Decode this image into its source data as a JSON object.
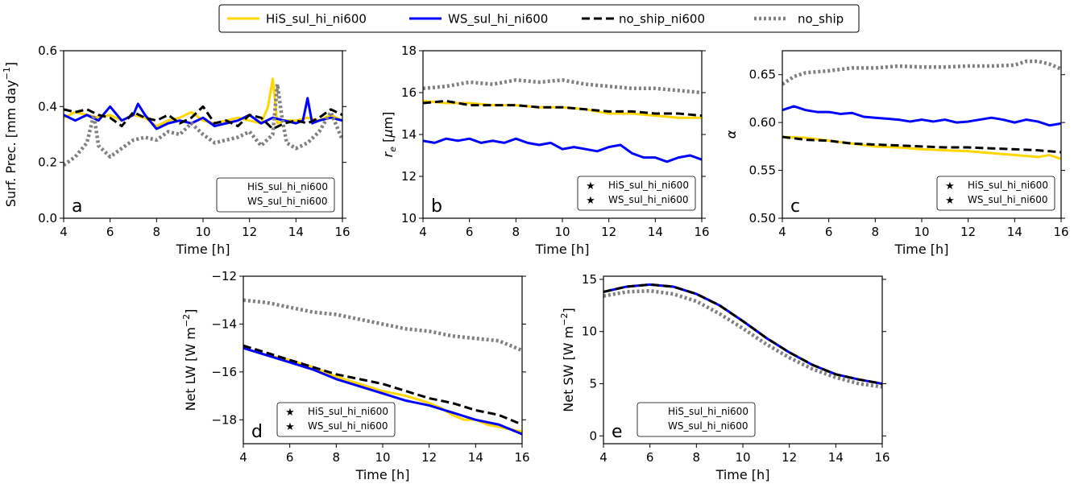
{
  "legend": {
    "entries": [
      {
        "label": "HiS_sul_hi_ni600",
        "color": "#FFD700",
        "style": "solid"
      },
      {
        "label": "WS_sul_hi_ni600",
        "color": "#0000FF",
        "style": "solid"
      },
      {
        "label": "no_ship_ni600",
        "color": "#000000",
        "style": "dashed"
      },
      {
        "label": "no_ship",
        "color": "#808080",
        "style": "dotted"
      }
    ]
  },
  "chart_data": [
    {
      "id": "a",
      "type": "line",
      "panel_label": "a",
      "xlabel": "Time [h]",
      "ylabel": "Surf. Prec. [mm day",
      "ylabel_sup": "−1",
      "ylabel_tail": "]",
      "xlim": [
        4,
        16
      ],
      "ylim": [
        0.0,
        0.6
      ],
      "xticks": [
        4,
        6,
        8,
        10,
        12,
        14,
        16
      ],
      "yticks": [
        0.0,
        0.2,
        0.4,
        0.6
      ],
      "ytick_labels": [
        "0.0",
        "0.2",
        "0.4",
        "0.6"
      ],
      "inset_legend": {
        "markers": false,
        "entries": [
          "HiS_sul_hi_ni600",
          "WS_sul_hi_ni600"
        ]
      },
      "series": [
        {
          "name": "HiS_sul_hi_ni600",
          "color": "#FFD700",
          "style": "solid",
          "x": [
            4,
            4.5,
            5,
            5.5,
            6,
            6.5,
            7,
            7.5,
            8,
            8.5,
            9,
            9.5,
            10,
            10.5,
            11,
            11.5,
            12,
            12.5,
            12.8,
            13,
            13.2,
            13.5,
            14,
            14.5,
            15,
            15.5,
            16
          ],
          "y": [
            0.36,
            0.38,
            0.37,
            0.36,
            0.37,
            0.35,
            0.37,
            0.36,
            0.33,
            0.35,
            0.36,
            0.38,
            0.35,
            0.34,
            0.35,
            0.36,
            0.35,
            0.34,
            0.4,
            0.5,
            0.34,
            0.35,
            0.35,
            0.36,
            0.35,
            0.37,
            0.35
          ]
        },
        {
          "name": "WS_sul_hi_ni600",
          "color": "#0000FF",
          "style": "solid",
          "x": [
            4,
            4.5,
            5,
            5.5,
            6,
            6.5,
            7,
            7.2,
            7.5,
            8,
            8.5,
            9,
            9.5,
            10,
            10.5,
            11,
            11.5,
            12,
            12.5,
            13,
            13.5,
            14,
            14.3,
            14.5,
            14.7,
            15,
            15.5,
            16
          ],
          "y": [
            0.37,
            0.35,
            0.37,
            0.35,
            0.4,
            0.35,
            0.37,
            0.41,
            0.37,
            0.32,
            0.34,
            0.35,
            0.34,
            0.36,
            0.33,
            0.34,
            0.35,
            0.37,
            0.34,
            0.36,
            0.35,
            0.34,
            0.35,
            0.43,
            0.34,
            0.35,
            0.36,
            0.35
          ]
        },
        {
          "name": "no_ship_ni600",
          "color": "#000000",
          "style": "dashed",
          "x": [
            4,
            4.5,
            5,
            5.5,
            6,
            6.5,
            7,
            7.5,
            8,
            8.5,
            9,
            9.5,
            10,
            10.5,
            11,
            11.5,
            12,
            12.5,
            13,
            13.5,
            14,
            14.5,
            15,
            15.5,
            16
          ],
          "y": [
            0.39,
            0.38,
            0.39,
            0.37,
            0.36,
            0.33,
            0.38,
            0.36,
            0.35,
            0.37,
            0.34,
            0.36,
            0.4,
            0.34,
            0.35,
            0.33,
            0.37,
            0.36,
            0.32,
            0.34,
            0.35,
            0.34,
            0.36,
            0.39,
            0.37
          ]
        },
        {
          "name": "no_ship",
          "color": "#808080",
          "style": "dotted",
          "x": [
            4,
            4.5,
            5,
            5.3,
            5.5,
            6,
            6.5,
            7,
            7.5,
            8,
            8.5,
            9,
            9.5,
            10,
            10.5,
            11,
            11.5,
            12,
            12.5,
            13,
            13.2,
            13.4,
            13.6,
            14,
            14.5,
            15,
            15.5,
            16
          ],
          "y": [
            0.19,
            0.22,
            0.27,
            0.37,
            0.26,
            0.22,
            0.25,
            0.28,
            0.29,
            0.28,
            0.31,
            0.3,
            0.34,
            0.3,
            0.27,
            0.28,
            0.29,
            0.31,
            0.26,
            0.3,
            0.48,
            0.36,
            0.27,
            0.25,
            0.27,
            0.31,
            0.38,
            0.28
          ]
        }
      ]
    },
    {
      "id": "b",
      "type": "line",
      "panel_label": "b",
      "xlabel": "Time [h]",
      "ylabel": "r_e [μm]",
      "xlim": [
        4,
        16
      ],
      "ylim": [
        10,
        18
      ],
      "xticks": [
        4,
        6,
        8,
        10,
        12,
        14,
        16
      ],
      "yticks": [
        10,
        12,
        14,
        16,
        18
      ],
      "ytick_labels": [
        "10",
        "12",
        "14",
        "16",
        "18"
      ],
      "inset_legend": {
        "markers": true,
        "entries": [
          "HiS_sul_hi_ni600",
          "WS_sul_hi_ni600"
        ]
      },
      "series": [
        {
          "name": "HiS_sul_hi_ni600",
          "color": "#FFD700",
          "style": "solid",
          "x": [
            4,
            5,
            6,
            7,
            8,
            9,
            10,
            11,
            12,
            13,
            14,
            15,
            16
          ],
          "y": [
            15.6,
            15.5,
            15.5,
            15.4,
            15.4,
            15.3,
            15.3,
            15.2,
            15.0,
            15.0,
            14.9,
            14.8,
            14.8
          ]
        },
        {
          "name": "WS_sul_hi_ni600",
          "color": "#0000FF",
          "style": "solid",
          "x": [
            4,
            4.5,
            5,
            5.5,
            6,
            6.5,
            7,
            7.5,
            8,
            8.5,
            9,
            9.5,
            10,
            10.5,
            11,
            11.5,
            12,
            12.5,
            13,
            13.5,
            14,
            14.5,
            15,
            15.5,
            16
          ],
          "y": [
            13.7,
            13.6,
            13.8,
            13.7,
            13.8,
            13.6,
            13.7,
            13.6,
            13.8,
            13.6,
            13.5,
            13.6,
            13.3,
            13.4,
            13.3,
            13.2,
            13.4,
            13.5,
            13.1,
            12.9,
            12.9,
            12.7,
            12.9,
            13.0,
            12.8
          ]
        },
        {
          "name": "no_ship_ni600",
          "color": "#000000",
          "style": "dashed",
          "x": [
            4,
            5,
            6,
            7,
            8,
            9,
            10,
            11,
            12,
            13,
            14,
            15,
            16
          ],
          "y": [
            15.5,
            15.6,
            15.4,
            15.4,
            15.4,
            15.3,
            15.3,
            15.2,
            15.1,
            15.1,
            15.0,
            15.0,
            14.9
          ]
        },
        {
          "name": "no_ship",
          "color": "#808080",
          "style": "dotted",
          "x": [
            4,
            5,
            6,
            7,
            8,
            9,
            10,
            11,
            12,
            13,
            14,
            15,
            16
          ],
          "y": [
            16.2,
            16.3,
            16.5,
            16.4,
            16.6,
            16.5,
            16.6,
            16.4,
            16.3,
            16.2,
            16.2,
            16.1,
            16.0
          ]
        }
      ]
    },
    {
      "id": "c",
      "type": "line",
      "panel_label": "c",
      "xlabel": "Time [h]",
      "ylabel": "α",
      "xlim": [
        4,
        16
      ],
      "ylim": [
        0.5,
        0.675
      ],
      "xticks": [
        4,
        6,
        8,
        10,
        12,
        14,
        16
      ],
      "yticks": [
        0.5,
        0.55,
        0.6,
        0.65
      ],
      "ytick_labels": [
        "0.50",
        "0.55",
        "0.60",
        "0.65"
      ],
      "inset_legend": {
        "markers": true,
        "entries": [
          "HiS_sul_hi_ni600",
          "WS_sul_hi_ni600"
        ]
      },
      "series": [
        {
          "name": "HiS_sul_hi_ni600",
          "color": "#FFD700",
          "style": "solid",
          "x": [
            4,
            5,
            6,
            7,
            8,
            9,
            10,
            11,
            12,
            13,
            14,
            15,
            15.5,
            16
          ],
          "y": [
            0.585,
            0.584,
            0.581,
            0.578,
            0.575,
            0.574,
            0.572,
            0.571,
            0.57,
            0.568,
            0.566,
            0.564,
            0.566,
            0.562
          ]
        },
        {
          "name": "WS_sul_hi_ni600",
          "color": "#0000FF",
          "style": "solid",
          "x": [
            4,
            4.5,
            5,
            5.5,
            6,
            6.5,
            7,
            7.5,
            8,
            8.5,
            9,
            9.5,
            10,
            10.5,
            11,
            11.5,
            12,
            12.5,
            13,
            13.5,
            14,
            14.5,
            15,
            15.5,
            16
          ],
          "y": [
            0.613,
            0.617,
            0.613,
            0.611,
            0.611,
            0.609,
            0.61,
            0.606,
            0.605,
            0.604,
            0.603,
            0.601,
            0.603,
            0.601,
            0.603,
            0.6,
            0.601,
            0.603,
            0.605,
            0.603,
            0.6,
            0.603,
            0.601,
            0.597,
            0.599
          ]
        },
        {
          "name": "no_ship_ni600",
          "color": "#000000",
          "style": "dashed",
          "x": [
            4,
            5,
            6,
            7,
            8,
            9,
            10,
            11,
            12,
            13,
            14,
            15,
            16
          ],
          "y": [
            0.585,
            0.582,
            0.581,
            0.578,
            0.577,
            0.576,
            0.575,
            0.574,
            0.574,
            0.573,
            0.572,
            0.571,
            0.569
          ]
        },
        {
          "name": "no_ship",
          "color": "#808080",
          "style": "dotted",
          "x": [
            4,
            4.5,
            5,
            6,
            7,
            8,
            9,
            10,
            11,
            12,
            13,
            14,
            14.5,
            15,
            15.5,
            16
          ],
          "y": [
            0.64,
            0.648,
            0.652,
            0.654,
            0.657,
            0.657,
            0.659,
            0.658,
            0.658,
            0.659,
            0.659,
            0.66,
            0.664,
            0.664,
            0.661,
            0.656
          ]
        }
      ]
    },
    {
      "id": "d",
      "type": "line",
      "panel_label": "d",
      "xlabel": "Time [h]",
      "ylabel": "Net LW [W m",
      "ylabel_sup": "−2",
      "ylabel_tail": "]",
      "xlim": [
        4,
        16
      ],
      "ylim": [
        -19,
        -12
      ],
      "xticks": [
        4,
        6,
        8,
        10,
        12,
        14,
        16
      ],
      "yticks": [
        -18,
        -16,
        -14,
        -12
      ],
      "ytick_labels": [
        "−18",
        "−16",
        "−14",
        "−12"
      ],
      "inset_legend": {
        "markers": true,
        "entries": [
          "HiS_sul_hi_ni600",
          "WS_sul_hi_ni600"
        ]
      },
      "series": [
        {
          "name": "HiS_sul_hi_ni600",
          "color": "#FFD700",
          "style": "solid",
          "x": [
            4,
            5,
            6,
            7,
            8,
            9,
            10,
            11,
            12,
            12.5,
            13,
            13.5,
            14,
            14.5,
            15,
            15.5,
            16
          ],
          "y": [
            -15.0,
            -15.3,
            -15.5,
            -15.8,
            -16.2,
            -16.5,
            -16.8,
            -17.0,
            -17.3,
            -17.5,
            -17.8,
            -18.0,
            -18.0,
            -18.2,
            -18.3,
            -18.4,
            -18.5
          ]
        },
        {
          "name": "WS_sul_hi_ni600",
          "color": "#0000FF",
          "style": "solid",
          "x": [
            4,
            5,
            6,
            7,
            8,
            9,
            10,
            11,
            12,
            13,
            14,
            15,
            16
          ],
          "y": [
            -15.0,
            -15.3,
            -15.6,
            -15.9,
            -16.3,
            -16.6,
            -16.9,
            -17.2,
            -17.4,
            -17.7,
            -18.0,
            -18.2,
            -18.6
          ]
        },
        {
          "name": "no_ship_ni600",
          "color": "#000000",
          "style": "dashed",
          "x": [
            4,
            5,
            6,
            7,
            8,
            9,
            10,
            11,
            12,
            13,
            14,
            15,
            16
          ],
          "y": [
            -14.9,
            -15.2,
            -15.5,
            -15.8,
            -16.1,
            -16.3,
            -16.5,
            -16.8,
            -17.1,
            -17.3,
            -17.6,
            -17.8,
            -18.2
          ]
        },
        {
          "name": "no_ship",
          "color": "#808080",
          "style": "dotted",
          "x": [
            4,
            5,
            6,
            7,
            8,
            9,
            10,
            11,
            12,
            13,
            14,
            15,
            16
          ],
          "y": [
            -13.0,
            -13.1,
            -13.3,
            -13.5,
            -13.6,
            -13.8,
            -14.0,
            -14.2,
            -14.3,
            -14.5,
            -14.6,
            -14.7,
            -15.1
          ]
        }
      ]
    },
    {
      "id": "e",
      "type": "line",
      "panel_label": "e",
      "xlabel": "Time [h]",
      "ylabel": "Net SW [W m",
      "ylabel_sup": "−2",
      "ylabel_tail": "]",
      "xlim": [
        4,
        16
      ],
      "ylim": [
        -0.75,
        15.3
      ],
      "xticks": [
        4,
        6,
        8,
        10,
        12,
        14,
        16
      ],
      "yticks": [
        0,
        5,
        10,
        15
      ],
      "ytick_labels": [
        "0",
        "5",
        "10",
        "15"
      ],
      "inset_legend": {
        "markers": false,
        "entries": [
          "HiS_sul_hi_ni600",
          "WS_sul_hi_ni600"
        ]
      },
      "series": [
        {
          "name": "HiS_sul_hi_ni600",
          "color": "#FFD700",
          "style": "solid",
          "x": [
            4,
            5,
            6,
            7,
            8,
            9,
            10,
            11,
            12,
            13,
            14,
            15,
            16
          ],
          "y": [
            13.8,
            14.3,
            14.5,
            14.3,
            13.6,
            12.5,
            11.0,
            9.4,
            8.0,
            6.8,
            5.9,
            5.4,
            5.0
          ]
        },
        {
          "name": "WS_sul_hi_ni600",
          "color": "#0000FF",
          "style": "solid",
          "x": [
            4,
            5,
            6,
            7,
            8,
            9,
            10,
            11,
            12,
            13,
            14,
            15,
            16
          ],
          "y": [
            13.8,
            14.3,
            14.5,
            14.3,
            13.6,
            12.5,
            11.0,
            9.4,
            8.0,
            6.8,
            5.9,
            5.4,
            5.0
          ]
        },
        {
          "name": "no_ship_ni600",
          "color": "#000000",
          "style": "dashed",
          "x": [
            4,
            5,
            6,
            7,
            8,
            9,
            10,
            11,
            12,
            13,
            14,
            15,
            16
          ],
          "y": [
            13.8,
            14.3,
            14.5,
            14.3,
            13.6,
            12.5,
            11.0,
            9.4,
            8.0,
            6.8,
            5.9,
            5.4,
            5.0
          ]
        },
        {
          "name": "no_ship",
          "color": "#808080",
          "style": "dotted",
          "x": [
            4,
            5,
            6,
            7,
            8,
            9,
            10,
            11,
            12,
            13,
            14,
            15,
            16
          ],
          "y": [
            13.4,
            13.8,
            13.9,
            13.6,
            12.9,
            11.7,
            10.3,
            8.8,
            7.5,
            6.4,
            5.6,
            5.0,
            4.7
          ]
        }
      ]
    }
  ]
}
